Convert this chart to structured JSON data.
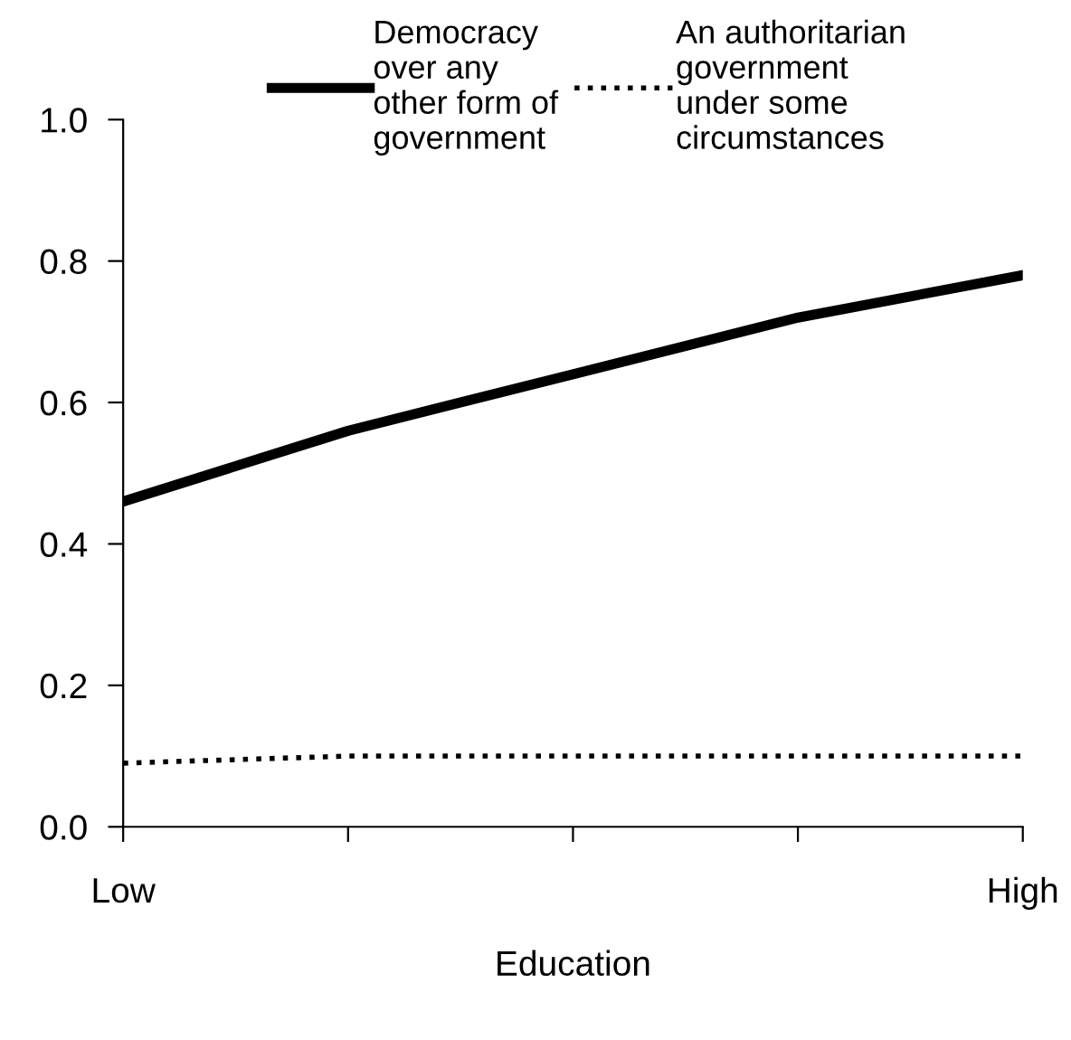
{
  "chart_data": {
    "type": "line",
    "xlabel": "Education",
    "categories": [
      "Low",
      null,
      null,
      null,
      "High"
    ],
    "ylim": [
      0,
      1
    ],
    "yticks": [
      {
        "value": 0,
        "label": "0.0"
      },
      {
        "value": 0.2,
        "label": "0.2"
      },
      {
        "value": 0.4,
        "label": "0.4"
      },
      {
        "value": 0.6,
        "label": "0.6"
      },
      {
        "value": 0.8,
        "label": "0.8"
      },
      {
        "value": 1,
        "label": "1.0"
      }
    ],
    "series": [
      {
        "name": "Democracy\nover any\nother form of\ngovernment",
        "color": "#000000",
        "line_style": "solid",
        "values": [
          0.46,
          0.56,
          0.64,
          0.72,
          0.78
        ]
      },
      {
        "name": "An authoritarian\ngovernment\nunder some\ncircumstances",
        "color": "#000000",
        "line_style": "dotted",
        "values": [
          0.09,
          0.1,
          0.1,
          0.1,
          0.1
        ]
      }
    ],
    "legend": "top"
  }
}
